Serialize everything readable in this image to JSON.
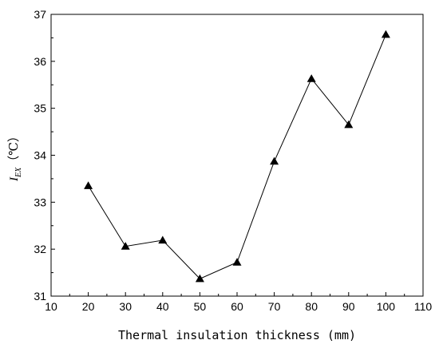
{
  "chart_data": {
    "type": "line",
    "title": "",
    "xlabel": "Thermal insulation thickness (mm)",
    "ylabel": {
      "symbol": "I",
      "subscript": "EX",
      "unit": "（℃）"
    },
    "xlim": [
      10,
      110
    ],
    "ylim": [
      31,
      37
    ],
    "xticks": [
      10,
      20,
      30,
      40,
      50,
      60,
      70,
      80,
      90,
      100,
      110
    ],
    "yticks": [
      31,
      32,
      33,
      34,
      35,
      36,
      37
    ],
    "grid": false,
    "legend": "none",
    "series": [
      {
        "marker": "triangle",
        "color": "#000000",
        "x": [
          20,
          30,
          40,
          50,
          60,
          70,
          80,
          90,
          100
        ],
        "y": [
          33.35,
          32.06,
          32.19,
          31.37,
          31.72,
          33.87,
          35.63,
          34.65,
          36.57
        ]
      }
    ]
  }
}
